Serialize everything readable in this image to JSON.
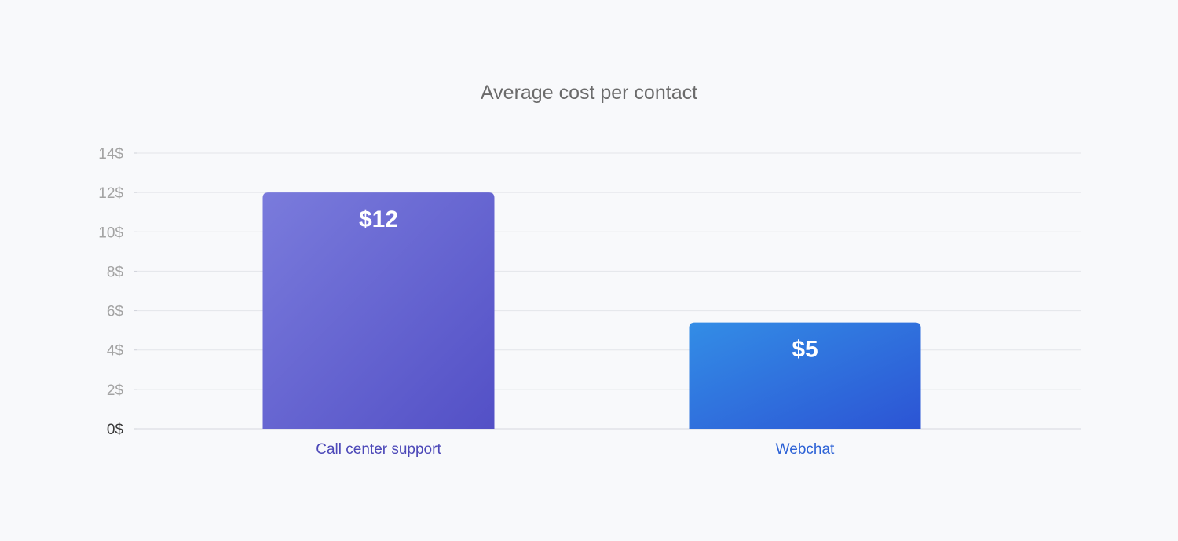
{
  "chart_data": {
    "type": "bar",
    "title": "Average cost per contact",
    "categories": [
      "Call center support",
      "Webchat"
    ],
    "values": [
      12,
      5.4
    ],
    "value_labels": [
      "$12",
      "$5"
    ],
    "ylim": [
      0,
      14
    ],
    "yticks": [
      0,
      2,
      4,
      6,
      8,
      10,
      12,
      14
    ],
    "ytick_labels": [
      "0$",
      "2$",
      "4$",
      "6$",
      "8$",
      "10$",
      "12$",
      "14$"
    ],
    "xlabel": "",
    "ylabel": "",
    "grid": true,
    "colors": {
      "bars": [
        {
          "from": "#7a7bdc",
          "to": "#5350c6"
        },
        {
          "from": "#338de6",
          "to": "#2c54d4"
        }
      ],
      "category_labels": [
        "#4c48b8",
        "#2e63d6"
      ]
    }
  }
}
